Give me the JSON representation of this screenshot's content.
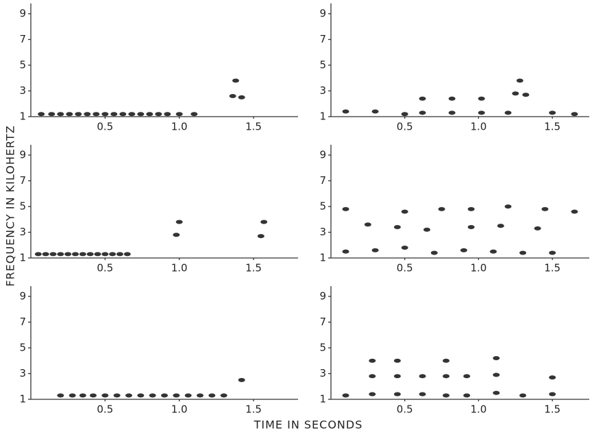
{
  "ylabel": "FREQUENCY IN KILOHERTZ",
  "xlabel": "TIME IN SECONDS",
  "chart_data": [
    {
      "type": "scatter",
      "xlim": [
        0,
        1.8
      ],
      "ylim": [
        1,
        9.8
      ],
      "xticks": [
        0.5,
        {
          "value": 1,
          "label": "1.0"
        },
        1.5
      ],
      "yticks": [
        1,
        3,
        5,
        7,
        9
      ],
      "color": "#111111",
      "x": [
        0.07,
        0.14,
        0.2,
        0.26,
        0.32,
        0.38,
        0.44,
        0.5,
        0.56,
        0.62,
        0.68,
        0.74,
        0.8,
        0.86,
        0.92,
        1.0,
        1.1,
        1.36,
        1.38,
        1.42
      ],
      "values": [
        1.2,
        1.2,
        1.2,
        1.2,
        1.2,
        1.2,
        1.2,
        1.2,
        1.2,
        1.2,
        1.2,
        1.2,
        1.2,
        1.2,
        1.2,
        1.2,
        1.2,
        2.6,
        3.8,
        2.5
      ]
    },
    {
      "type": "scatter",
      "xlim": [
        0,
        1.75
      ],
      "ylim": [
        1,
        9.8
      ],
      "xticks": [
        0.5,
        {
          "value": 1,
          "label": "1.0"
        },
        1.5
      ],
      "yticks": [
        1,
        3,
        5,
        7,
        9
      ],
      "color": "#111111",
      "x": [
        0.1,
        0.3,
        0.5,
        0.62,
        0.82,
        1.02,
        1.2,
        1.25,
        1.28,
        1.32,
        1.5,
        1.65,
        0.62,
        0.82,
        1.02
      ],
      "values": [
        1.4,
        1.4,
        1.2,
        1.3,
        1.3,
        1.3,
        1.3,
        2.8,
        3.8,
        2.7,
        1.3,
        1.2,
        2.4,
        2.4,
        2.4
      ]
    },
    {
      "type": "scatter",
      "xlim": [
        0,
        1.8
      ],
      "ylim": [
        1,
        9.8
      ],
      "xticks": [
        0.5,
        {
          "value": 1,
          "label": "1.0"
        },
        1.5
      ],
      "yticks": [
        1,
        3,
        5,
        7,
        9
      ],
      "color": "#111111",
      "x": [
        0.05,
        0.1,
        0.15,
        0.2,
        0.25,
        0.3,
        0.35,
        0.4,
        0.45,
        0.5,
        0.55,
        0.6,
        0.65,
        0.98,
        1.0,
        1.55,
        1.57
      ],
      "values": [
        1.3,
        1.3,
        1.3,
        1.3,
        1.3,
        1.3,
        1.3,
        1.3,
        1.3,
        1.3,
        1.3,
        1.3,
        1.3,
        2.8,
        3.8,
        2.7,
        3.8
      ]
    },
    {
      "type": "scatter",
      "xlim": [
        0,
        1.75
      ],
      "ylim": [
        1,
        9.8
      ],
      "xticks": [
        0.5,
        {
          "value": 1,
          "label": "1.0"
        },
        1.5
      ],
      "yticks": [
        1,
        3,
        5,
        7,
        9
      ],
      "color": "#111111",
      "x": [
        0.1,
        0.3,
        0.5,
        0.7,
        0.9,
        1.1,
        1.3,
        1.5,
        0.25,
        0.45,
        0.65,
        0.95,
        1.15,
        1.4,
        0.1,
        0.5,
        0.75,
        0.95,
        1.2,
        1.45,
        1.65
      ],
      "values": [
        1.5,
        1.6,
        1.8,
        1.4,
        1.6,
        1.5,
        1.4,
        1.4,
        3.6,
        3.4,
        3.2,
        3.4,
        3.5,
        3.3,
        4.8,
        4.6,
        4.8,
        4.8,
        5.0,
        4.8,
        4.6
      ]
    },
    {
      "type": "scatter",
      "xlim": [
        0,
        1.8
      ],
      "ylim": [
        1,
        9.8
      ],
      "xticks": [
        0.5,
        {
          "value": 1,
          "label": "1.0"
        },
        1.5
      ],
      "yticks": [
        1,
        3,
        5,
        7,
        9
      ],
      "color": "#111111",
      "x": [
        0.2,
        0.28,
        0.35,
        0.42,
        0.5,
        0.58,
        0.66,
        0.74,
        0.82,
        0.9,
        0.98,
        1.06,
        1.14,
        1.22,
        1.3,
        1.42
      ],
      "values": [
        1.3,
        1.3,
        1.3,
        1.3,
        1.3,
        1.3,
        1.3,
        1.3,
        1.3,
        1.3,
        1.3,
        1.3,
        1.3,
        1.3,
        1.3,
        2.5
      ]
    },
    {
      "type": "scatter",
      "xlim": [
        0,
        1.75
      ],
      "ylim": [
        1,
        9.8
      ],
      "xticks": [
        0.5,
        {
          "value": 1,
          "label": "1.0"
        },
        1.5
      ],
      "yticks": [
        1,
        3,
        5,
        7,
        9
      ],
      "color": "#111111",
      "x": [
        0.1,
        0.28,
        0.45,
        0.62,
        0.78,
        0.92,
        1.12,
        1.3,
        1.5,
        0.28,
        0.45,
        0.62,
        0.78,
        0.92,
        1.12,
        1.5,
        0.28,
        0.45,
        0.78,
        1.12
      ],
      "values": [
        1.3,
        1.4,
        1.4,
        1.4,
        1.3,
        1.3,
        1.5,
        1.3,
        1.4,
        2.8,
        2.8,
        2.8,
        2.8,
        2.8,
        2.9,
        2.7,
        4.0,
        4.0,
        4.0,
        4.2
      ]
    }
  ]
}
